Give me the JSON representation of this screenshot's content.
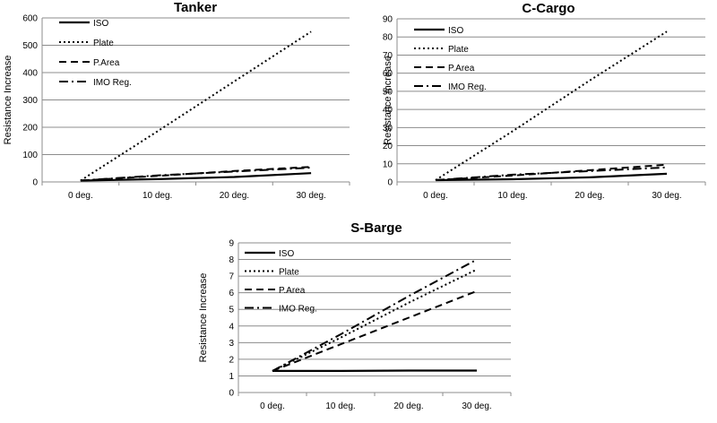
{
  "chart_data": [
    {
      "type": "line",
      "title": "Tanker",
      "xlabel": "",
      "ylabel": "Resistance Increase",
      "categories": [
        "0 deg.",
        "10 deg.",
        "20 deg.",
        "30 deg."
      ],
      "ylim": [
        0,
        600
      ],
      "yticks": [
        0,
        100,
        200,
        300,
        400,
        500,
        600
      ],
      "grid": true,
      "legend": "top-left",
      "series": [
        {
          "name": "ISO",
          "values": [
            5,
            10,
            18,
            32
          ]
        },
        {
          "name": "Plate",
          "values": [
            5,
            185,
            368,
            550
          ]
        },
        {
          "name": "P.Area",
          "values": [
            5,
            22,
            40,
            55
          ]
        },
        {
          "name": "IMO Reg.",
          "values": [
            5,
            24,
            38,
            52
          ]
        }
      ]
    },
    {
      "type": "line",
      "title": "C-Cargo",
      "xlabel": "",
      "ylabel": "Resistance Increase",
      "categories": [
        "0 deg.",
        "10 deg.",
        "20 deg.",
        "30 deg."
      ],
      "ylim": [
        0,
        90
      ],
      "yticks": [
        0,
        10,
        20,
        30,
        40,
        50,
        60,
        70,
        80,
        90
      ],
      "grid": true,
      "legend": "top-left",
      "series": [
        {
          "name": "ISO",
          "values": [
            1,
            1.5,
            2.5,
            4.5
          ]
        },
        {
          "name": "Plate",
          "values": [
            1,
            28,
            56,
            83
          ]
        },
        {
          "name": "P.Area",
          "values": [
            1,
            3.5,
            6.5,
            9.5
          ]
        },
        {
          "name": "IMO Reg.",
          "values": [
            1,
            4,
            6,
            8
          ]
        }
      ]
    },
    {
      "type": "line",
      "title": "S-Barge",
      "xlabel": "",
      "ylabel": "Resistance Increase",
      "categories": [
        "0 deg.",
        "10 deg.",
        "20 deg.",
        "30 deg."
      ],
      "ylim": [
        0,
        9
      ],
      "yticks": [
        0,
        1,
        2,
        3,
        4,
        5,
        6,
        7,
        8,
        9
      ],
      "grid": true,
      "legend": "top-left",
      "series": [
        {
          "name": "ISO",
          "values": [
            1.3,
            1.3,
            1.32,
            1.32
          ]
        },
        {
          "name": "Plate",
          "values": [
            1.3,
            3.3,
            5.4,
            7.4
          ]
        },
        {
          "name": "P.Area",
          "values": [
            1.3,
            2.9,
            4.5,
            6.1
          ]
        },
        {
          "name": "IMO Reg.",
          "values": [
            1.3,
            3.5,
            5.8,
            8.0
          ]
        }
      ]
    }
  ]
}
